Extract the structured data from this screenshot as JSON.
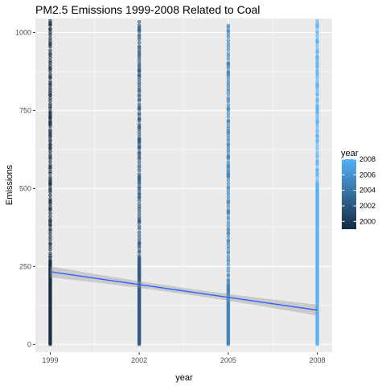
{
  "chart_data": {
    "type": "scatter",
    "title": "PM2.5 Emissions 1999-2008 Related to Coal",
    "xlabel": "year",
    "ylabel": "Emissions",
    "x_ticks": [
      1999,
      2002,
      2005,
      2008
    ],
    "y_ticks": [
      0,
      250,
      500,
      750,
      1000
    ],
    "xlim": [
      1998.5,
      2008.5
    ],
    "ylim": [
      -25,
      1045
    ],
    "grid": true,
    "background_color": "#ebebeb",
    "grid_color": "#ffffff",
    "point_color_low": "#132b43",
    "point_color_high": "#56b1f7",
    "point_alpha": 0.6,
    "series": [
      {
        "x": 1999,
        "y_min": 0,
        "y_max": 1045,
        "dense_below": 270
      },
      {
        "x": 2002,
        "y_min": 0,
        "y_max": 1045,
        "dense_below": 280
      },
      {
        "x": 2005,
        "y_min": 0,
        "y_max": 1025,
        "dense_below": 190
      },
      {
        "x": 2008,
        "y_min": 0,
        "y_max": 1040,
        "dense_below": 520
      }
    ],
    "trend_line": {
      "color": "#3366ff",
      "band_color": "#999999",
      "start": {
        "x": 1999,
        "y": 233
      },
      "end": {
        "x": 2008,
        "y": 110
      },
      "band_half_width_start": 18,
      "band_half_width_mid": 10,
      "band_half_width_end": 18
    },
    "legend": {
      "title": "year",
      "placement": "right",
      "range": [
        1999,
        2008
      ],
      "labels": [
        2000,
        2002,
        2004,
        2006,
        2008
      ]
    }
  }
}
